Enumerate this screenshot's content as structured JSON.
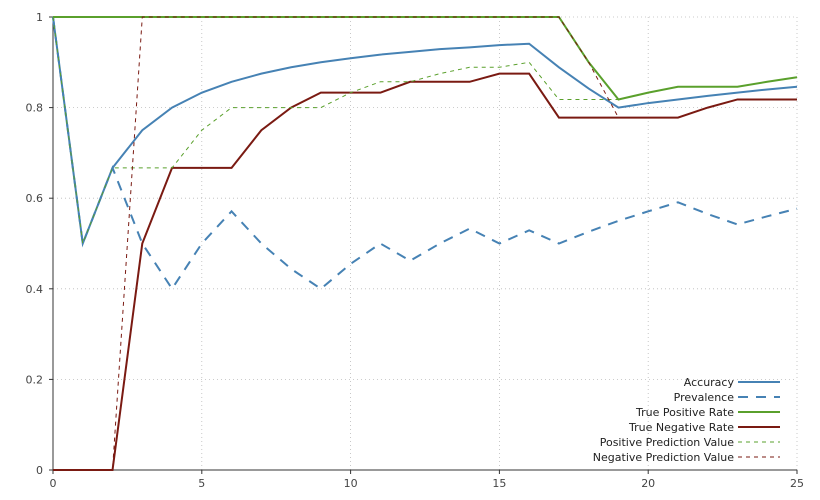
{
  "chart_data": {
    "type": "line",
    "title": "",
    "xlabel": "",
    "ylabel": "",
    "xlim": [
      0,
      25
    ],
    "ylim": [
      0,
      1
    ],
    "grid": true,
    "legend_position": "bottom-right",
    "x_ticks": [
      0,
      5,
      10,
      15,
      20,
      25
    ],
    "y_ticks": [
      0,
      0.2,
      0.4,
      0.6,
      0.8,
      1
    ],
    "y_tick_labels": [
      "0",
      "0.2",
      "0.4",
      "0.6",
      "0.8",
      "1"
    ],
    "x": [
      0,
      1,
      2,
      3,
      4,
      5,
      6,
      7,
      8,
      9,
      10,
      11,
      12,
      13,
      14,
      15,
      16,
      17,
      18,
      19,
      20,
      21,
      22,
      23,
      24,
      25
    ],
    "series": [
      {
        "name": "Accuracy",
        "color": "#4682b4",
        "style": "solid",
        "width": 2,
        "values": [
          1,
          0.5,
          0.667,
          0.75,
          0.8,
          0.833,
          0.857,
          0.875,
          0.889,
          0.9,
          0.909,
          0.917,
          0.923,
          0.929,
          0.933,
          0.938,
          0.941,
          0.889,
          0.842,
          0.8,
          0.81,
          0.818,
          0.826,
          0.833,
          0.84,
          0.846
        ]
      },
      {
        "name": "Prevalence",
        "color": "#4682b4",
        "style": "dashed",
        "width": 2,
        "values": [
          1,
          0.5,
          0.667,
          0.5,
          0.4,
          0.5,
          0.571,
          0.5,
          0.444,
          0.4,
          0.455,
          0.5,
          0.462,
          0.5,
          0.533,
          0.5,
          0.529,
          0.5,
          0.526,
          0.55,
          0.571,
          0.591,
          0.565,
          0.542,
          0.56,
          0.577
        ]
      },
      {
        "name": "True Positive Rate",
        "color": "#5aa02c",
        "style": "solid",
        "width": 2,
        "values": [
          1,
          1,
          1,
          1,
          1,
          1,
          1,
          1,
          1,
          1,
          1,
          1,
          1,
          1,
          1,
          1,
          1,
          1,
          0.9,
          0.818,
          0.833,
          0.846,
          0.846,
          0.846,
          0.857,
          0.867
        ]
      },
      {
        "name": "True Negative Rate",
        "color": "#7a1a12",
        "style": "solid",
        "width": 2,
        "values": [
          0,
          0,
          0,
          0.5,
          0.667,
          0.667,
          0.667,
          0.75,
          0.8,
          0.833,
          0.833,
          0.833,
          0.857,
          0.857,
          0.857,
          0.875,
          0.875,
          0.778,
          0.778,
          0.778,
          0.778,
          0.778,
          0.8,
          0.818,
          0.818,
          0.818
        ]
      },
      {
        "name": "Positive Prediction Value",
        "color": "#5aa02c",
        "style": "dotted-fine",
        "width": 1,
        "values": [
          1,
          0.5,
          0.667,
          0.667,
          0.667,
          0.75,
          0.8,
          0.8,
          0.8,
          0.8,
          0.833,
          0.857,
          0.857,
          0.875,
          0.889,
          0.889,
          0.9,
          0.818,
          0.818,
          0.818,
          null,
          null,
          null,
          null,
          null,
          null
        ]
      },
      {
        "name": "Negative Prediction Value",
        "color": "#7a1a12",
        "style": "dotted-fine",
        "width": 1,
        "values": [
          0,
          0,
          0,
          1,
          1,
          1,
          1,
          1,
          1,
          1,
          1,
          1,
          1,
          1,
          1,
          1,
          1,
          1,
          0.9,
          0.778,
          null,
          null,
          null,
          null,
          null,
          null
        ]
      }
    ]
  }
}
